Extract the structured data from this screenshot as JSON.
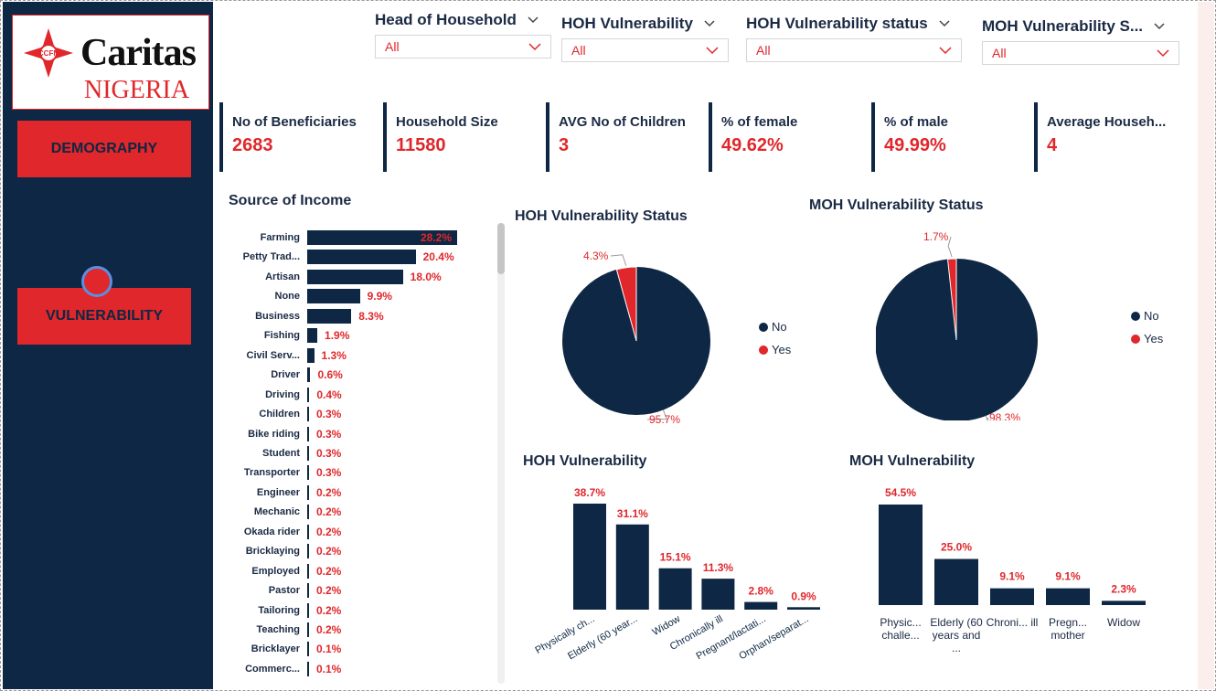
{
  "logo": {
    "word": "Caritas",
    "sub": "NIGERIA",
    "badge": "CCFN"
  },
  "nav": {
    "demography": "DEMOGRAPHY",
    "vulnerability": "VULNERABILITY"
  },
  "filters": [
    {
      "title": "Head of Household",
      "value": "All"
    },
    {
      "title": "HOH Vulnerability",
      "value": "All"
    },
    {
      "title": "HOH Vulnerability status",
      "value": "All"
    },
    {
      "title": "MOH Vulnerability S...",
      "value": "All"
    }
  ],
  "kpis": [
    {
      "label": "No of Beneficiaries",
      "value": "2683"
    },
    {
      "label": "Household Size",
      "value": "11580"
    },
    {
      "label": "AVG No of Children",
      "value": "3"
    },
    {
      "label": "% of female",
      "value": "49.62%"
    },
    {
      "label": "% of male",
      "value": "49.99%"
    },
    {
      "label": "Average Househ...",
      "value": "4"
    }
  ],
  "colors": {
    "navy": "#0d2744",
    "red": "#e0272b"
  },
  "chart_data": [
    {
      "type": "bar",
      "orientation": "horizontal",
      "title": "Source of Income",
      "categories": [
        "Farming",
        "Petty Trad...",
        "Artisan",
        "None",
        "Business",
        "Fishing",
        "Civil Serv...",
        "Driver",
        "Driving",
        "Children",
        "Bike riding",
        "Student",
        "Transporter",
        "Engineer",
        "Mechanic",
        "Okada rider",
        "Bricklaying",
        "Employed",
        "Pastor",
        "Tailoring",
        "Teaching",
        "Bricklayer",
        "Commerc..."
      ],
      "values": [
        28.2,
        20.4,
        18.0,
        9.9,
        8.3,
        1.9,
        1.3,
        0.6,
        0.4,
        0.3,
        0.3,
        0.3,
        0.3,
        0.2,
        0.2,
        0.2,
        0.2,
        0.2,
        0.2,
        0.2,
        0.2,
        0.1,
        0.1
      ],
      "labels": [
        "28.2%",
        "20.4%",
        "18.0%",
        "9.9%",
        "8.3%",
        "1.9%",
        "1.3%",
        "0.6%",
        "0.4%",
        "0.3%",
        "0.3%",
        "0.3%",
        "0.3%",
        "0.2%",
        "0.2%",
        "0.2%",
        "0.2%",
        "0.2%",
        "0.2%",
        "0.2%",
        "0.2%",
        "0.1%",
        "0.1%"
      ]
    },
    {
      "type": "pie",
      "title": "HOH Vulnerability Status",
      "categories": [
        "No",
        "Yes"
      ],
      "values": [
        95.7,
        4.3
      ],
      "labels": [
        "95.7%",
        "4.3%"
      ],
      "legend": "right"
    },
    {
      "type": "pie",
      "title": "MOH Vulnerability Status",
      "categories": [
        "No",
        "Yes"
      ],
      "values": [
        98.3,
        1.7
      ],
      "labels": [
        "98.3%",
        "1.7%"
      ],
      "legend": "right"
    },
    {
      "type": "bar",
      "title": "HOH Vulnerability",
      "categories": [
        "Physically ch...",
        "Elderly (60 year...",
        "Widow",
        "Chronically ill",
        "Pregnant/lactati...",
        "Orphan/separat..."
      ],
      "values": [
        38.7,
        31.1,
        15.1,
        11.3,
        2.8,
        0.9
      ],
      "labels": [
        "38.7%",
        "31.1%",
        "15.1%",
        "11.3%",
        "2.8%",
        "0.9%"
      ]
    },
    {
      "type": "bar",
      "title": "MOH Vulnerability",
      "categories": [
        "Physic... challe...",
        "Elderly (60 years and ...",
        "Chroni... ill",
        "Pregn... mother",
        "Widow"
      ],
      "values": [
        54.5,
        25.0,
        9.1,
        9.1,
        2.3
      ],
      "labels": [
        "54.5%",
        "25.0%",
        "9.1%",
        "9.1%",
        "2.3%"
      ]
    }
  ]
}
